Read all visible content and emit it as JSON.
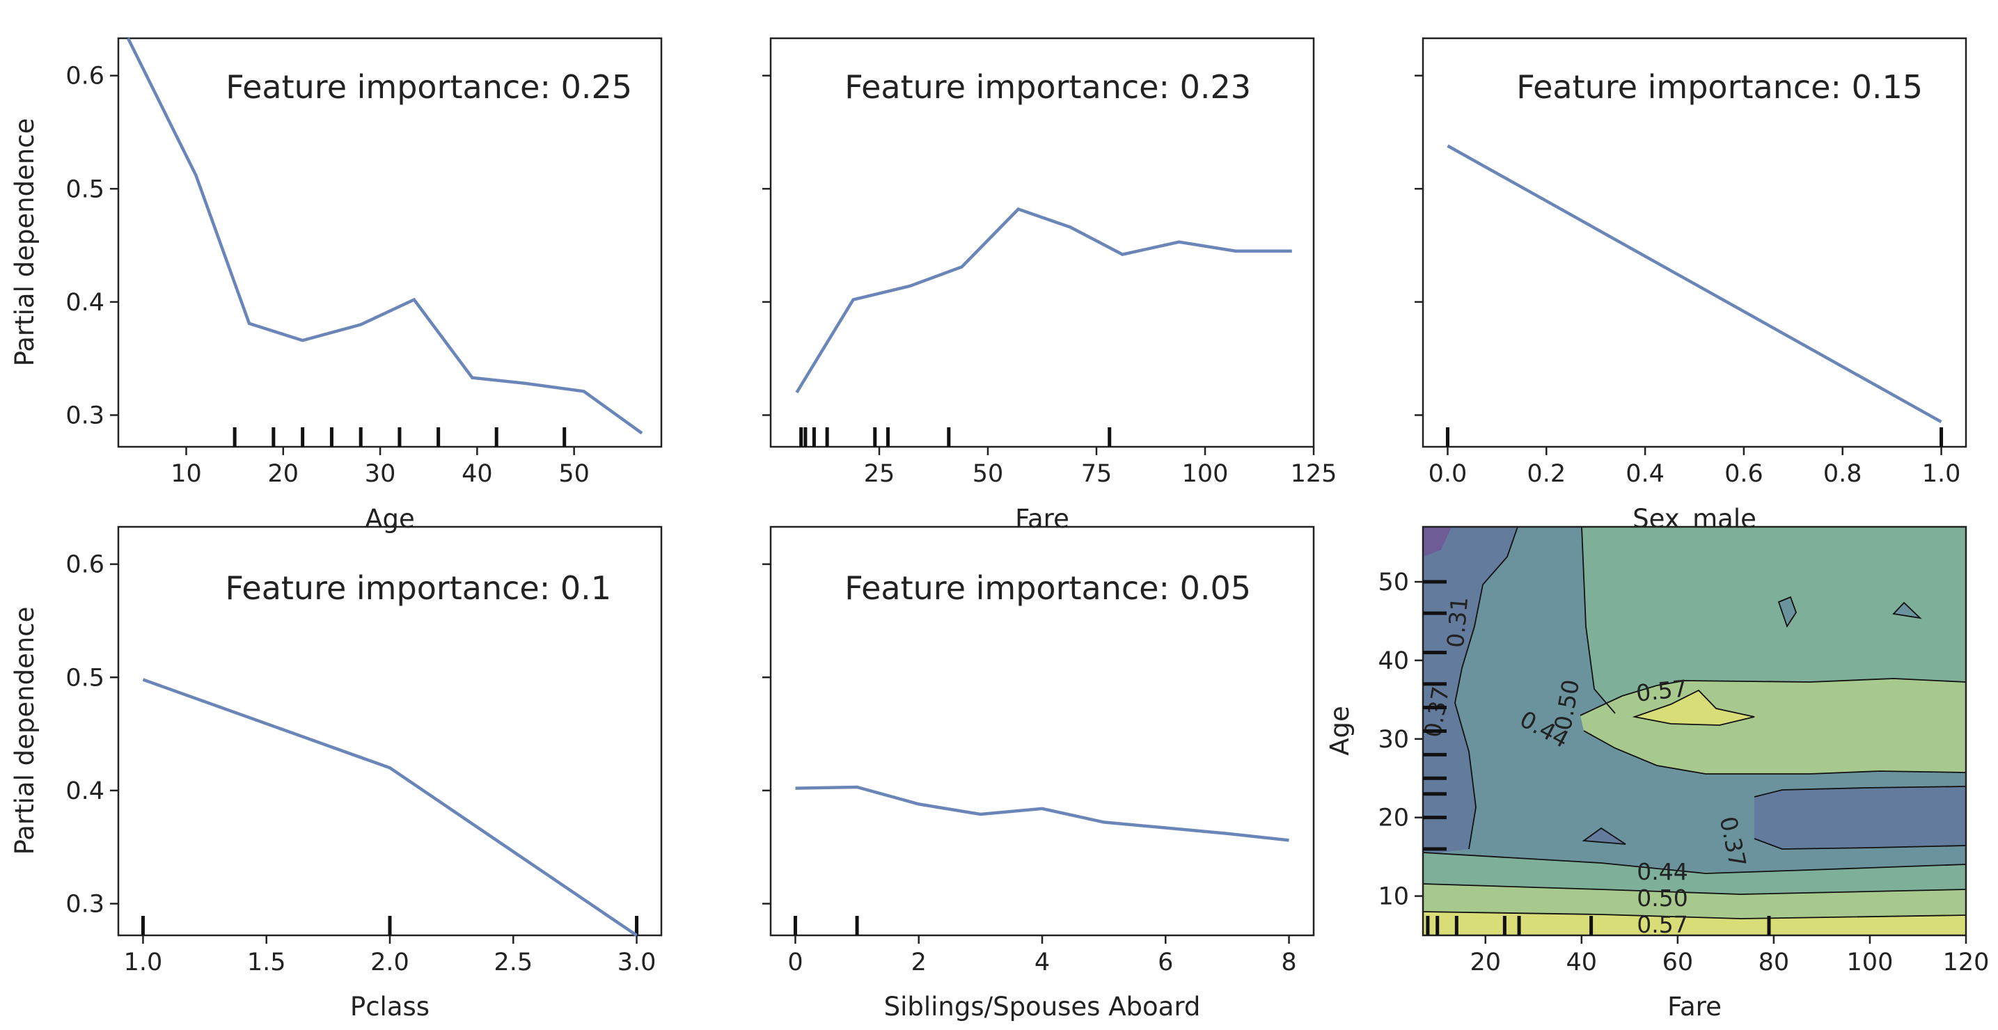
{
  "figure": {
    "background": "#ffffff",
    "line_color": "#6a86b9",
    "ylabel": "Partial dependence",
    "annotations": [
      "Feature importance: 0.25",
      "Feature importance: 0.23",
      "Feature importance: 0.15",
      "Feature importance: 0.1",
      "Feature importance: 0.05"
    ]
  },
  "chart_data": [
    {
      "type": "line",
      "xlabel": "Age",
      "ylabel": "Partial dependence",
      "annotation": "Feature importance: 0.25",
      "xlim": [
        3,
        59
      ],
      "ylim": [
        0.272,
        0.633
      ],
      "xticks": [
        10,
        20,
        30,
        40,
        50
      ],
      "yticks": [
        0.3,
        0.4,
        0.5,
        0.6
      ],
      "x": [
        4,
        11,
        16.5,
        22,
        28,
        33.5,
        39.5,
        45,
        51,
        57
      ],
      "y": [
        0.64,
        0.512,
        0.381,
        0.366,
        0.38,
        0.402,
        0.333,
        0.328,
        0.321,
        0.284
      ],
      "rug": [
        15,
        19,
        22,
        25,
        28,
        32,
        36,
        42,
        49
      ]
    },
    {
      "type": "line",
      "xlabel": "Fare",
      "ylabel": "",
      "annotation": "Feature importance: 0.23",
      "xlim": [
        0,
        125
      ],
      "ylim": [
        0.272,
        0.633
      ],
      "xticks": [
        25,
        50,
        75,
        100,
        125
      ],
      "yticks": [
        0.3,
        0.4,
        0.5,
        0.6
      ],
      "x": [
        6,
        19,
        32,
        44,
        57,
        69,
        81,
        94,
        107,
        120
      ],
      "y": [
        0.32,
        0.402,
        0.414,
        0.431,
        0.482,
        0.466,
        0.442,
        0.453,
        0.445,
        0.445
      ],
      "rug": [
        7,
        8,
        10,
        13,
        24,
        27,
        41,
        78
      ]
    },
    {
      "type": "line",
      "xlabel": "Sex_male",
      "ylabel": "",
      "annotation": "Feature importance: 0.15",
      "xlim": [
        -0.05,
        1.05
      ],
      "ylim": [
        0.272,
        0.633
      ],
      "xticks": [
        0.0,
        0.2,
        0.4,
        0.6,
        0.8,
        1.0
      ],
      "xtick_labels": [
        "0.0",
        "0.2",
        "0.4",
        "0.6",
        "0.8",
        "1.0"
      ],
      "yticks": [
        0.3,
        0.4,
        0.5,
        0.6
      ],
      "x": [
        0.0,
        1.0
      ],
      "y": [
        0.538,
        0.294
      ],
      "rug": [
        0.0,
        1.0
      ]
    },
    {
      "type": "line",
      "xlabel": "Pclass",
      "ylabel": "Partial dependence",
      "annotation": "Feature importance: 0.1",
      "xlim": [
        0.9,
        3.1
      ],
      "ylim": [
        0.272,
        0.633
      ],
      "xticks": [
        1.0,
        1.5,
        2.0,
        2.5,
        3.0
      ],
      "xtick_labels": [
        "1.0",
        "1.5",
        "2.0",
        "2.5",
        "3.0"
      ],
      "yticks": [
        0.3,
        0.4,
        0.5,
        0.6
      ],
      "x": [
        1.0,
        2.0,
        3.0
      ],
      "y": [
        0.498,
        0.42,
        0.272
      ],
      "rug": [
        1.0,
        2.0,
        3.0
      ]
    },
    {
      "type": "line",
      "xlabel": "Siblings/Spouses Aboard",
      "ylabel": "",
      "annotation": "Feature importance: 0.05",
      "xlim": [
        -0.4,
        8.4
      ],
      "ylim": [
        0.272,
        0.633
      ],
      "xticks": [
        0,
        2,
        4,
        6,
        8
      ],
      "yticks": [
        0.3,
        0.4,
        0.5,
        0.6
      ],
      "x": [
        0,
        1,
        2,
        3,
        4,
        5,
        6,
        7,
        8
      ],
      "y": [
        0.402,
        0.403,
        0.388,
        0.379,
        0.384,
        0.372,
        0.367,
        0.362,
        0.356
      ],
      "rug": [
        0,
        1
      ]
    },
    {
      "type": "heatmap",
      "xlabel": "Fare",
      "ylabel": "Age",
      "xlim": [
        7,
        120
      ],
      "ylim": [
        5,
        57
      ],
      "xticks": [
        20,
        40,
        60,
        80,
        100,
        120
      ],
      "yticks": [
        10,
        20,
        30,
        40,
        50
      ],
      "levels": [
        0.31,
        0.37,
        0.44,
        0.5,
        0.57
      ],
      "level_labels": [
        "0.31",
        "0.37",
        "0.44",
        "0.50",
        "0.57"
      ],
      "band_colors": [
        "#6e5c97",
        "#637b9c",
        "#6a939e",
        "#7eaf99",
        "#a7c98d",
        "#d9dd78"
      ],
      "rug_x": [
        8,
        10,
        14,
        24,
        27,
        42,
        79
      ],
      "rug_y": [
        16,
        20,
        23,
        25,
        28,
        31,
        34,
        37,
        41,
        46,
        50
      ]
    }
  ]
}
